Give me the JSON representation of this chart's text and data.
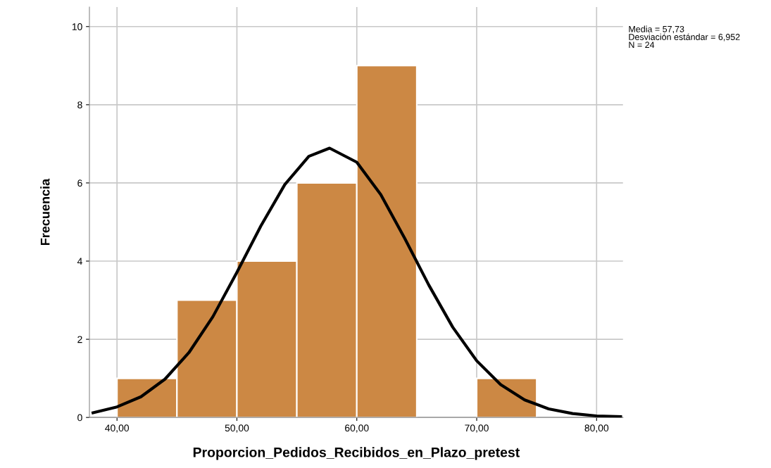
{
  "chart_data": {
    "type": "histogram",
    "xlabel": "Proporcion_Pedidos_Recibidos_en_Plazo_pretest",
    "ylabel": "Frecuencia",
    "bins": [
      40,
      45,
      50,
      55,
      60,
      65,
      70,
      75
    ],
    "values": [
      1,
      3,
      4,
      6,
      9,
      0,
      1
    ],
    "color": "#cc8844",
    "series": [
      {
        "type": "line",
        "color": "#000000",
        "x": [
          38,
          40,
          42,
          44,
          46,
          48,
          50,
          52,
          54,
          56,
          57.73,
          60,
          62,
          64,
          66,
          68,
          70,
          72,
          74,
          76,
          78,
          80,
          82
        ],
        "values": [
          0.12,
          0.27,
          0.53,
          0.98,
          1.66,
          2.58,
          3.71,
          4.9,
          5.96,
          6.68,
          6.89,
          6.53,
          5.7,
          4.58,
          3.39,
          2.31,
          1.45,
          0.84,
          0.45,
          0.22,
          0.1,
          0.04,
          0.02
        ]
      }
    ],
    "xlim": [
      37.7,
      82.2
    ],
    "ylim": [
      0,
      10.5
    ],
    "xticks": [
      {
        "value": 40,
        "label": "40,00"
      },
      {
        "value": 50,
        "label": "50,00"
      },
      {
        "value": 60,
        "label": "60,00"
      },
      {
        "value": 70,
        "label": "70,00"
      },
      {
        "value": 80,
        "label": "80,00"
      }
    ],
    "yticks": [
      0,
      2,
      4,
      6,
      8,
      10
    ],
    "grid": true,
    "legend": false,
    "annotations": [
      "Media = 57,73\nDesviación estándar = 6,952\nN = 24"
    ]
  }
}
